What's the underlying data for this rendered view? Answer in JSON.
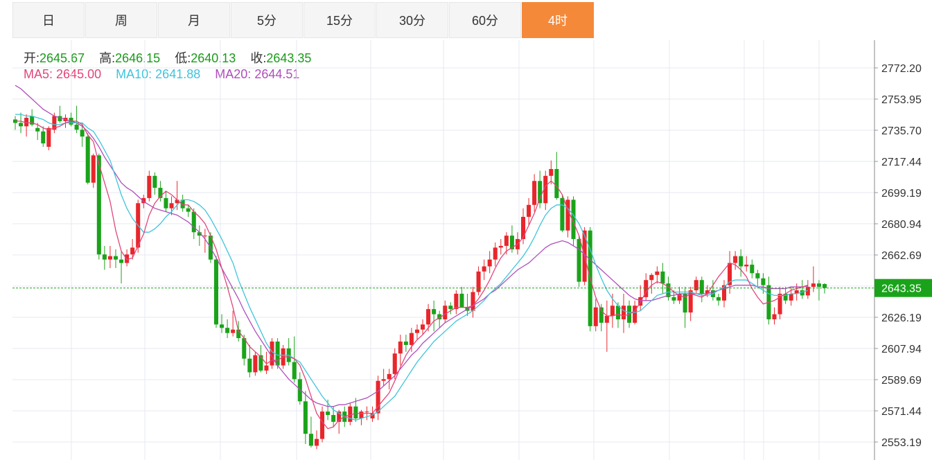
{
  "tabs": [
    {
      "label": "日",
      "active": false
    },
    {
      "label": "周",
      "active": false
    },
    {
      "label": "月",
      "active": false
    },
    {
      "label": "5分",
      "active": false
    },
    {
      "label": "15分",
      "active": false
    },
    {
      "label": "30分",
      "active": false
    },
    {
      "label": "60分",
      "active": false
    },
    {
      "label": "4时",
      "active": true
    }
  ],
  "ohlc_info": {
    "open_label": "开:",
    "open": "2645.67",
    "high_label": "高:",
    "high": "2646.15",
    "low_label": "低:",
    "low": "2640.13",
    "close_label": "收:",
    "close": "2643.35"
  },
  "ma_info": {
    "ma5_label": "MA5:",
    "ma5": "2645.00",
    "ma10_label": "MA10:",
    "ma10": "2641.88",
    "ma20_label": "MA20:",
    "ma20": "2644.51"
  },
  "colors": {
    "up": "#e8262c",
    "down": "#1aa31a",
    "ma5": "#e2457a",
    "ma10": "#3fc4dc",
    "ma20": "#b04dbc",
    "grid": "#e4e9f0",
    "last_price_bg": "#1aa31a",
    "tab_active": "#f5893a"
  },
  "chart_data": {
    "type": "candlestick",
    "y_ticks": [
      "2772.20",
      "2753.95",
      "2735.70",
      "2717.44",
      "2699.19",
      "2680.94",
      "2662.69",
      "2644.44",
      "2626.19",
      "2607.94",
      "2589.69",
      "2571.44",
      "2553.19"
    ],
    "y_range": [
      2549,
      2774
    ],
    "last_price": "2643.35",
    "grid": true,
    "candles": [
      [
        2742,
        2744,
        2736,
        2740
      ],
      [
        2740,
        2746,
        2734,
        2738
      ],
      [
        2738,
        2745,
        2732,
        2743
      ],
      [
        2744,
        2748,
        2738,
        2739
      ],
      [
        2737,
        2740,
        2730,
        2735
      ],
      [
        2735,
        2738,
        2726,
        2728
      ],
      [
        2726,
        2738,
        2724,
        2737
      ],
      [
        2736,
        2746,
        2734,
        2744
      ],
      [
        2744,
        2750,
        2740,
        2741
      ],
      [
        2741,
        2745,
        2737,
        2743
      ],
      [
        2743,
        2746,
        2738,
        2739
      ],
      [
        2739,
        2750,
        2734,
        2736
      ],
      [
        2736,
        2740,
        2726,
        2732
      ],
      [
        2732,
        2734,
        2704,
        2705
      ],
      [
        2705,
        2722,
        2702,
        2721
      ],
      [
        2721,
        2722,
        2660,
        2663
      ],
      [
        2663,
        2668,
        2654,
        2660
      ],
      [
        2660,
        2668,
        2655,
        2662
      ],
      [
        2662,
        2666,
        2655,
        2660
      ],
      [
        2660,
        2665,
        2646,
        2658
      ],
      [
        2658,
        2666,
        2656,
        2663
      ],
      [
        2663,
        2672,
        2660,
        2667
      ],
      [
        2667,
        2695,
        2664,
        2693
      ],
      [
        2693,
        2698,
        2690,
        2696
      ],
      [
        2696,
        2712,
        2694,
        2709
      ],
      [
        2709,
        2711,
        2698,
        2702
      ],
      [
        2702,
        2706,
        2694,
        2696
      ],
      [
        2696,
        2700,
        2688,
        2690
      ],
      [
        2690,
        2697,
        2686,
        2693
      ],
      [
        2693,
        2706,
        2689,
        2695
      ],
      [
        2695,
        2698,
        2688,
        2690
      ],
      [
        2690,
        2692,
        2685,
        2688
      ],
      [
        2688,
        2690,
        2672,
        2676
      ],
      [
        2676,
        2680,
        2668,
        2674
      ],
      [
        2674,
        2678,
        2664,
        2674
      ],
      [
        2674,
        2676,
        2658,
        2660
      ],
      [
        2660,
        2662,
        2620,
        2622
      ],
      [
        2622,
        2628,
        2617,
        2620
      ],
      [
        2620,
        2625,
        2614,
        2617
      ],
      [
        2617,
        2630,
        2615,
        2619
      ],
      [
        2619,
        2624,
        2612,
        2614
      ],
      [
        2614,
        2616,
        2598,
        2602
      ],
      [
        2602,
        2610,
        2591,
        2594
      ],
      [
        2594,
        2606,
        2592,
        2604
      ],
      [
        2604,
        2610,
        2594,
        2595
      ],
      [
        2595,
        2606,
        2593,
        2598
      ],
      [
        2598,
        2614,
        2596,
        2612
      ],
      [
        2612,
        2614,
        2596,
        2598
      ],
      [
        2598,
        2610,
        2596,
        2608
      ],
      [
        2608,
        2614,
        2598,
        2600
      ],
      [
        2600,
        2615,
        2588,
        2590
      ],
      [
        2590,
        2594,
        2575,
        2577
      ],
      [
        2577,
        2583,
        2552,
        2558
      ],
      [
        2558,
        2568,
        2550,
        2551
      ],
      [
        2551,
        2560,
        2549,
        2555
      ],
      [
        2555,
        2574,
        2553,
        2571
      ],
      [
        2571,
        2578,
        2566,
        2569
      ],
      [
        2569,
        2574,
        2562,
        2565
      ],
      [
        2565,
        2572,
        2558,
        2571
      ],
      [
        2571,
        2574,
        2562,
        2565
      ],
      [
        2565,
        2576,
        2563,
        2574
      ],
      [
        2574,
        2579,
        2565,
        2567
      ],
      [
        2567,
        2572,
        2563,
        2571
      ],
      [
        2571,
        2574,
        2566,
        2571
      ],
      [
        2567,
        2574,
        2565,
        2570
      ],
      [
        2570,
        2592,
        2566,
        2589
      ],
      [
        2589,
        2596,
        2586,
        2590
      ],
      [
        2590,
        2596,
        2584,
        2593
      ],
      [
        2593,
        2608,
        2590,
        2605
      ],
      [
        2605,
        2616,
        2598,
        2612
      ],
      [
        2612,
        2616,
        2606,
        2610
      ],
      [
        2610,
        2620,
        2606,
        2617
      ],
      [
        2617,
        2622,
        2613,
        2619
      ],
      [
        2619,
        2625,
        2616,
        2622
      ],
      [
        2622,
        2634,
        2618,
        2631
      ],
      [
        2631,
        2636,
        2618,
        2628
      ],
      [
        2628,
        2630,
        2620,
        2625
      ],
      [
        2625,
        2636,
        2623,
        2633
      ],
      [
        2633,
        2635,
        2628,
        2631
      ],
      [
        2631,
        2642,
        2628,
        2640
      ],
      [
        2640,
        2644,
        2632,
        2632
      ],
      [
        2632,
        2640,
        2627,
        2630
      ],
      [
        2630,
        2644,
        2626,
        2641
      ],
      [
        2641,
        2656,
        2639,
        2653
      ],
      [
        2653,
        2660,
        2648,
        2656
      ],
      [
        2656,
        2665,
        2652,
        2660
      ],
      [
        2660,
        2670,
        2656,
        2667
      ],
      [
        2667,
        2672,
        2663,
        2668
      ],
      [
        2668,
        2676,
        2663,
        2674
      ],
      [
        2674,
        2680,
        2664,
        2666
      ],
      [
        2666,
        2676,
        2663,
        2672
      ],
      [
        2672,
        2690,
        2669,
        2685
      ],
      [
        2685,
        2696,
        2680,
        2692
      ],
      [
        2692,
        2710,
        2688,
        2706
      ],
      [
        2706,
        2712,
        2690,
        2693
      ],
      [
        2693,
        2712,
        2689,
        2709
      ],
      [
        2709,
        2718,
        2704,
        2713
      ],
      [
        2713,
        2723,
        2695,
        2696
      ],
      [
        2696,
        2698,
        2676,
        2677
      ],
      [
        2677,
        2697,
        2673,
        2695
      ],
      [
        2695,
        2697,
        2668,
        2672
      ],
      [
        2672,
        2674,
        2644,
        2647
      ],
      [
        2647,
        2679,
        2645,
        2677
      ],
      [
        2677,
        2679,
        2618,
        2621
      ],
      [
        2621,
        2637,
        2618,
        2632
      ],
      [
        2632,
        2634,
        2618,
        2623
      ],
      [
        2623,
        2636,
        2606,
        2627
      ],
      [
        2627,
        2640,
        2620,
        2633
      ],
      [
        2633,
        2635,
        2620,
        2625
      ],
      [
        2625,
        2640,
        2617,
        2633
      ],
      [
        2633,
        2636,
        2620,
        2623
      ],
      [
        2623,
        2636,
        2622,
        2633
      ],
      [
        2633,
        2645,
        2630,
        2638
      ],
      [
        2638,
        2652,
        2636,
        2648
      ],
      [
        2648,
        2652,
        2640,
        2651
      ],
      [
        2651,
        2656,
        2646,
        2653
      ],
      [
        2653,
        2658,
        2640,
        2646
      ],
      [
        2646,
        2650,
        2636,
        2638
      ],
      [
        2638,
        2642,
        2634,
        2636
      ],
      [
        2636,
        2644,
        2634,
        2640
      ],
      [
        2640,
        2644,
        2620,
        2629
      ],
      [
        2629,
        2644,
        2624,
        2642
      ],
      [
        2642,
        2650,
        2640,
        2648
      ],
      [
        2648,
        2650,
        2635,
        2640
      ],
      [
        2640,
        2645,
        2638,
        2642
      ],
      [
        2642,
        2648,
        2636,
        2638
      ],
      [
        2638,
        2640,
        2633,
        2636
      ],
      [
        2636,
        2648,
        2632,
        2645
      ],
      [
        2645,
        2665,
        2640,
        2658
      ],
      [
        2658,
        2665,
        2654,
        2662
      ],
      [
        2662,
        2666,
        2650,
        2656
      ],
      [
        2656,
        2662,
        2653,
        2657
      ],
      [
        2657,
        2660,
        2649,
        2652
      ],
      [
        2652,
        2654,
        2644,
        2649
      ],
      [
        2649,
        2652,
        2640,
        2645
      ],
      [
        2645,
        2650,
        2622,
        2625
      ],
      [
        2625,
        2632,
        2622,
        2628
      ],
      [
        2628,
        2644,
        2625,
        2640
      ],
      [
        2640,
        2644,
        2634,
        2636
      ],
      [
        2636,
        2644,
        2633,
        2640
      ],
      [
        2640,
        2646,
        2636,
        2642
      ],
      [
        2642,
        2648,
        2637,
        2639
      ],
      [
        2639,
        2648,
        2637,
        2644
      ],
      [
        2644,
        2656,
        2641,
        2646
      ],
      [
        2646,
        2648,
        2636,
        2644
      ],
      [
        2645.67,
        2646.15,
        2640.13,
        2643.35
      ]
    ],
    "ma5": [
      2741,
      2741,
      2740,
      2740,
      2739,
      2737,
      2736,
      2737,
      2738,
      2740,
      2741,
      2741,
      2739,
      2733,
      2729,
      2716,
      2705,
      2694,
      2677,
      2665,
      2660,
      2661,
      2668,
      2675,
      2686,
      2693,
      2697,
      2700,
      2698,
      2695,
      2692,
      2692,
      2688,
      2685,
      2681,
      2674,
      2666,
      2655,
      2644,
      2632,
      2618,
      2614,
      2609,
      2606,
      2603,
      2599,
      2601,
      2601,
      2603,
      2603,
      2602,
      2598,
      2590,
      2580,
      2570,
      2565,
      2561,
      2562,
      2566,
      2568,
      2569,
      2570,
      2570,
      2570,
      2570,
      2574,
      2578,
      2582,
      2589,
      2597,
      2604,
      2609,
      2613,
      2616,
      2620,
      2624,
      2626,
      2628,
      2630,
      2632,
      2632,
      2632,
      2633,
      2637,
      2642,
      2648,
      2655,
      2661,
      2665,
      2667,
      2669,
      2673,
      2680,
      2687,
      2696,
      2703,
      2706,
      2703,
      2698,
      2689,
      2682,
      2674,
      2662,
      2649,
      2638,
      2630,
      2627,
      2627,
      2628,
      2627,
      2628,
      2630,
      2635,
      2641,
      2645,
      2647,
      2646,
      2644,
      2641,
      2639,
      2638,
      2640,
      2639,
      2638,
      2640,
      2645,
      2650,
      2654,
      2658,
      2657,
      2654,
      2650,
      2643,
      2638,
      2634,
      2635,
      2636,
      2638,
      2640,
      2642,
      2643,
      2644,
      2645
    ],
    "ma10": [
      2745,
      2745,
      2744,
      2744,
      2743,
      2742,
      2740,
      2739,
      2739,
      2740,
      2740,
      2740,
      2740,
      2737,
      2735,
      2730,
      2724,
      2718,
      2708,
      2698,
      2690,
      2684,
      2680,
      2676,
      2676,
      2678,
      2681,
      2685,
      2688,
      2692,
      2695,
      2695,
      2694,
      2692,
      2689,
      2684,
      2678,
      2672,
      2665,
      2658,
      2648,
      2640,
      2632,
      2625,
      2618,
      2611,
      2606,
      2604,
      2604,
      2604,
      2602,
      2600,
      2595,
      2590,
      2585,
      2580,
      2576,
      2572,
      2570,
      2568,
      2567,
      2566,
      2567,
      2568,
      2569,
      2571,
      2574,
      2577,
      2580,
      2585,
      2590,
      2595,
      2600,
      2604,
      2608,
      2612,
      2615,
      2618,
      2621,
      2624,
      2626,
      2628,
      2630,
      2633,
      2636,
      2640,
      2643,
      2646,
      2650,
      2654,
      2658,
      2662,
      2667,
      2673,
      2680,
      2686,
      2690,
      2692,
      2692,
      2690,
      2686,
      2681,
      2674,
      2666,
      2657,
      2649,
      2642,
      2637,
      2633,
      2630,
      2629,
      2629,
      2630,
      2633,
      2636,
      2639,
      2640,
      2641,
      2641,
      2641,
      2641,
      2641,
      2640,
      2639,
      2639,
      2640,
      2642,
      2644,
      2647,
      2648,
      2648,
      2648,
      2646,
      2644,
      2642,
      2640,
      2639,
      2639,
      2639,
      2640,
      2640,
      2641,
      2641.88
    ],
    "ma20": [
      2762,
      2760,
      2757,
      2754,
      2751,
      2748,
      2746,
      2744,
      2743,
      2742,
      2741,
      2740,
      2738,
      2735,
      2731,
      2726,
      2720,
      2715,
      2710,
      2705,
      2702,
      2700,
      2697,
      2694,
      2692,
      2690,
      2689,
      2688,
      2687,
      2686,
      2684,
      2682,
      2679,
      2676,
      2672,
      2667,
      2661,
      2655,
      2649,
      2643,
      2637,
      2630,
      2624,
      2618,
      2613,
      2608,
      2603,
      2598,
      2594,
      2590,
      2587,
      2584,
      2581,
      2578,
      2576,
      2575,
      2574,
      2574,
      2575,
      2575,
      2576,
      2577,
      2578,
      2579,
      2581,
      2583,
      2586,
      2589,
      2592,
      2596,
      2600,
      2604,
      2607,
      2611,
      2614,
      2617,
      2620,
      2623,
      2625,
      2627,
      2629,
      2631,
      2633,
      2635,
      2637,
      2640,
      2642,
      2645,
      2648,
      2651,
      2654,
      2656,
      2658,
      2661,
      2664,
      2667,
      2669,
      2670,
      2671,
      2670,
      2668,
      2666,
      2663,
      2660,
      2657,
      2654,
      2651,
      2648,
      2645,
      2642,
      2639,
      2637,
      2636,
      2636,
      2636,
      2637,
      2638,
      2639,
      2639,
      2640,
      2640,
      2640,
      2640,
      2640,
      2640,
      2641,
      2642,
      2643,
      2644,
      2645,
      2645,
      2645,
      2645,
      2644,
      2644,
      2643,
      2643,
      2643,
      2643,
      2644,
      2644,
      2644,
      2644.51
    ]
  }
}
